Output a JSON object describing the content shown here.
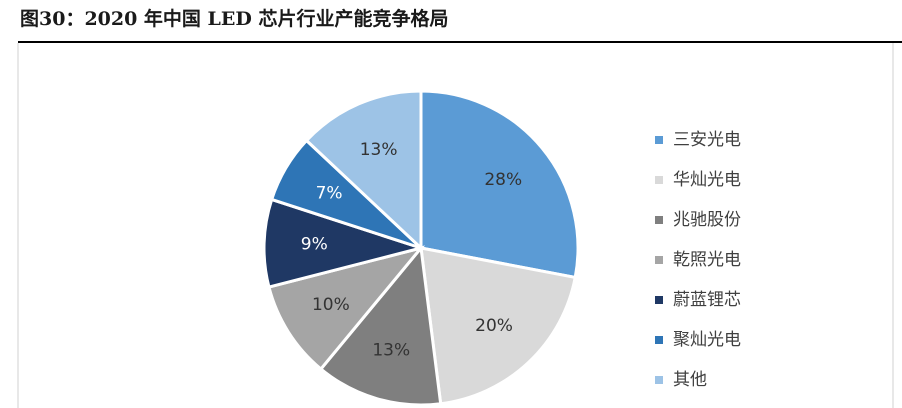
{
  "chart_data": {
    "type": "pie",
    "title": "图30：2020 年中国 LED 芯片行业产能竞争格局",
    "categories": [
      "三安光电",
      "华灿光电",
      "兆驰股份",
      "乾照光电",
      "蔚蓝锂芯",
      "聚灿光电",
      "其他"
    ],
    "values": [
      28,
      20,
      13,
      10,
      9,
      7,
      13
    ],
    "value_labels": [
      "28%",
      "20%",
      "13%",
      "10%",
      "9%",
      "7%",
      "13%"
    ],
    "colors": [
      "#5b9bd5",
      "#d9d9d9",
      "#7f7f7f",
      "#a5a5a5",
      "#1f3864",
      "#2e75b6",
      "#9dc3e6"
    ],
    "legend": "right"
  }
}
